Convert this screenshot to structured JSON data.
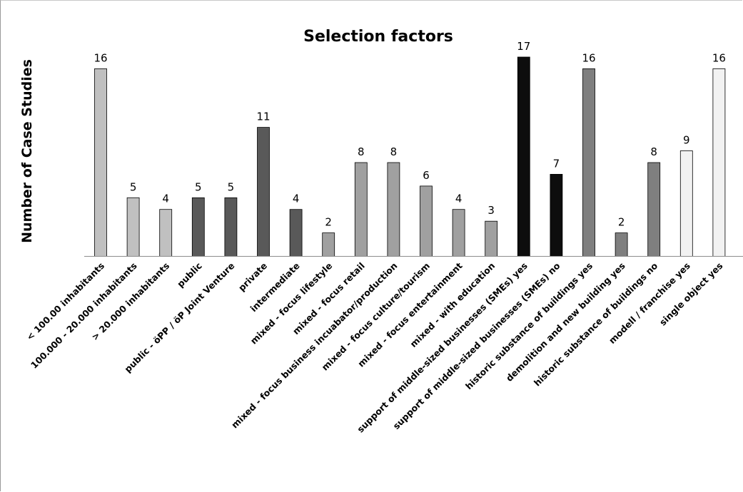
{
  "chart_data": {
    "type": "bar",
    "title": "Selection factors",
    "xlabel": "",
    "ylabel": "Number of Case Studies",
    "ylim": [
      0,
      17
    ],
    "grid": false,
    "legend": "none",
    "categories": [
      "< 100.00 inhabitants",
      "100.000 - 20.000 inhabitants",
      "> 20.000 inhabitants",
      "public",
      "public - öPP / öP Joint Venture",
      "private",
      "intermediate",
      "mixed - focus lifestyle",
      "mixed - focus retail",
      "mixed - focus business incuabator/production",
      "mixed - focus culture/tourism",
      "mixed - focus entertainment",
      "mixed - with education",
      "support of middle-sized businesses (SMEs) yes",
      "support of middle-sized businesses (SMEs) no",
      "historic substance of buildings yes",
      "demolition and new building yes",
      "historic substance of buildings no",
      "modell / franchise yes",
      "single object yes"
    ],
    "values": [
      16,
      5,
      4,
      5,
      5,
      11,
      4,
      2,
      8,
      8,
      6,
      4,
      3,
      17,
      7,
      16,
      2,
      8,
      9,
      16
    ],
    "colors": [
      "#c0c0c0",
      "#c0c0c0",
      "#c0c0c0",
      "#595959",
      "#595959",
      "#595959",
      "#595959",
      "#a0a0a0",
      "#a0a0a0",
      "#a0a0a0",
      "#a0a0a0",
      "#a0a0a0",
      "#a0a0a0",
      "#0d0d0d",
      "#0d0d0d",
      "#7f7f7f",
      "#7f7f7f",
      "#7f7f7f",
      "#f2f2f2",
      "#f2f2f2"
    ]
  }
}
